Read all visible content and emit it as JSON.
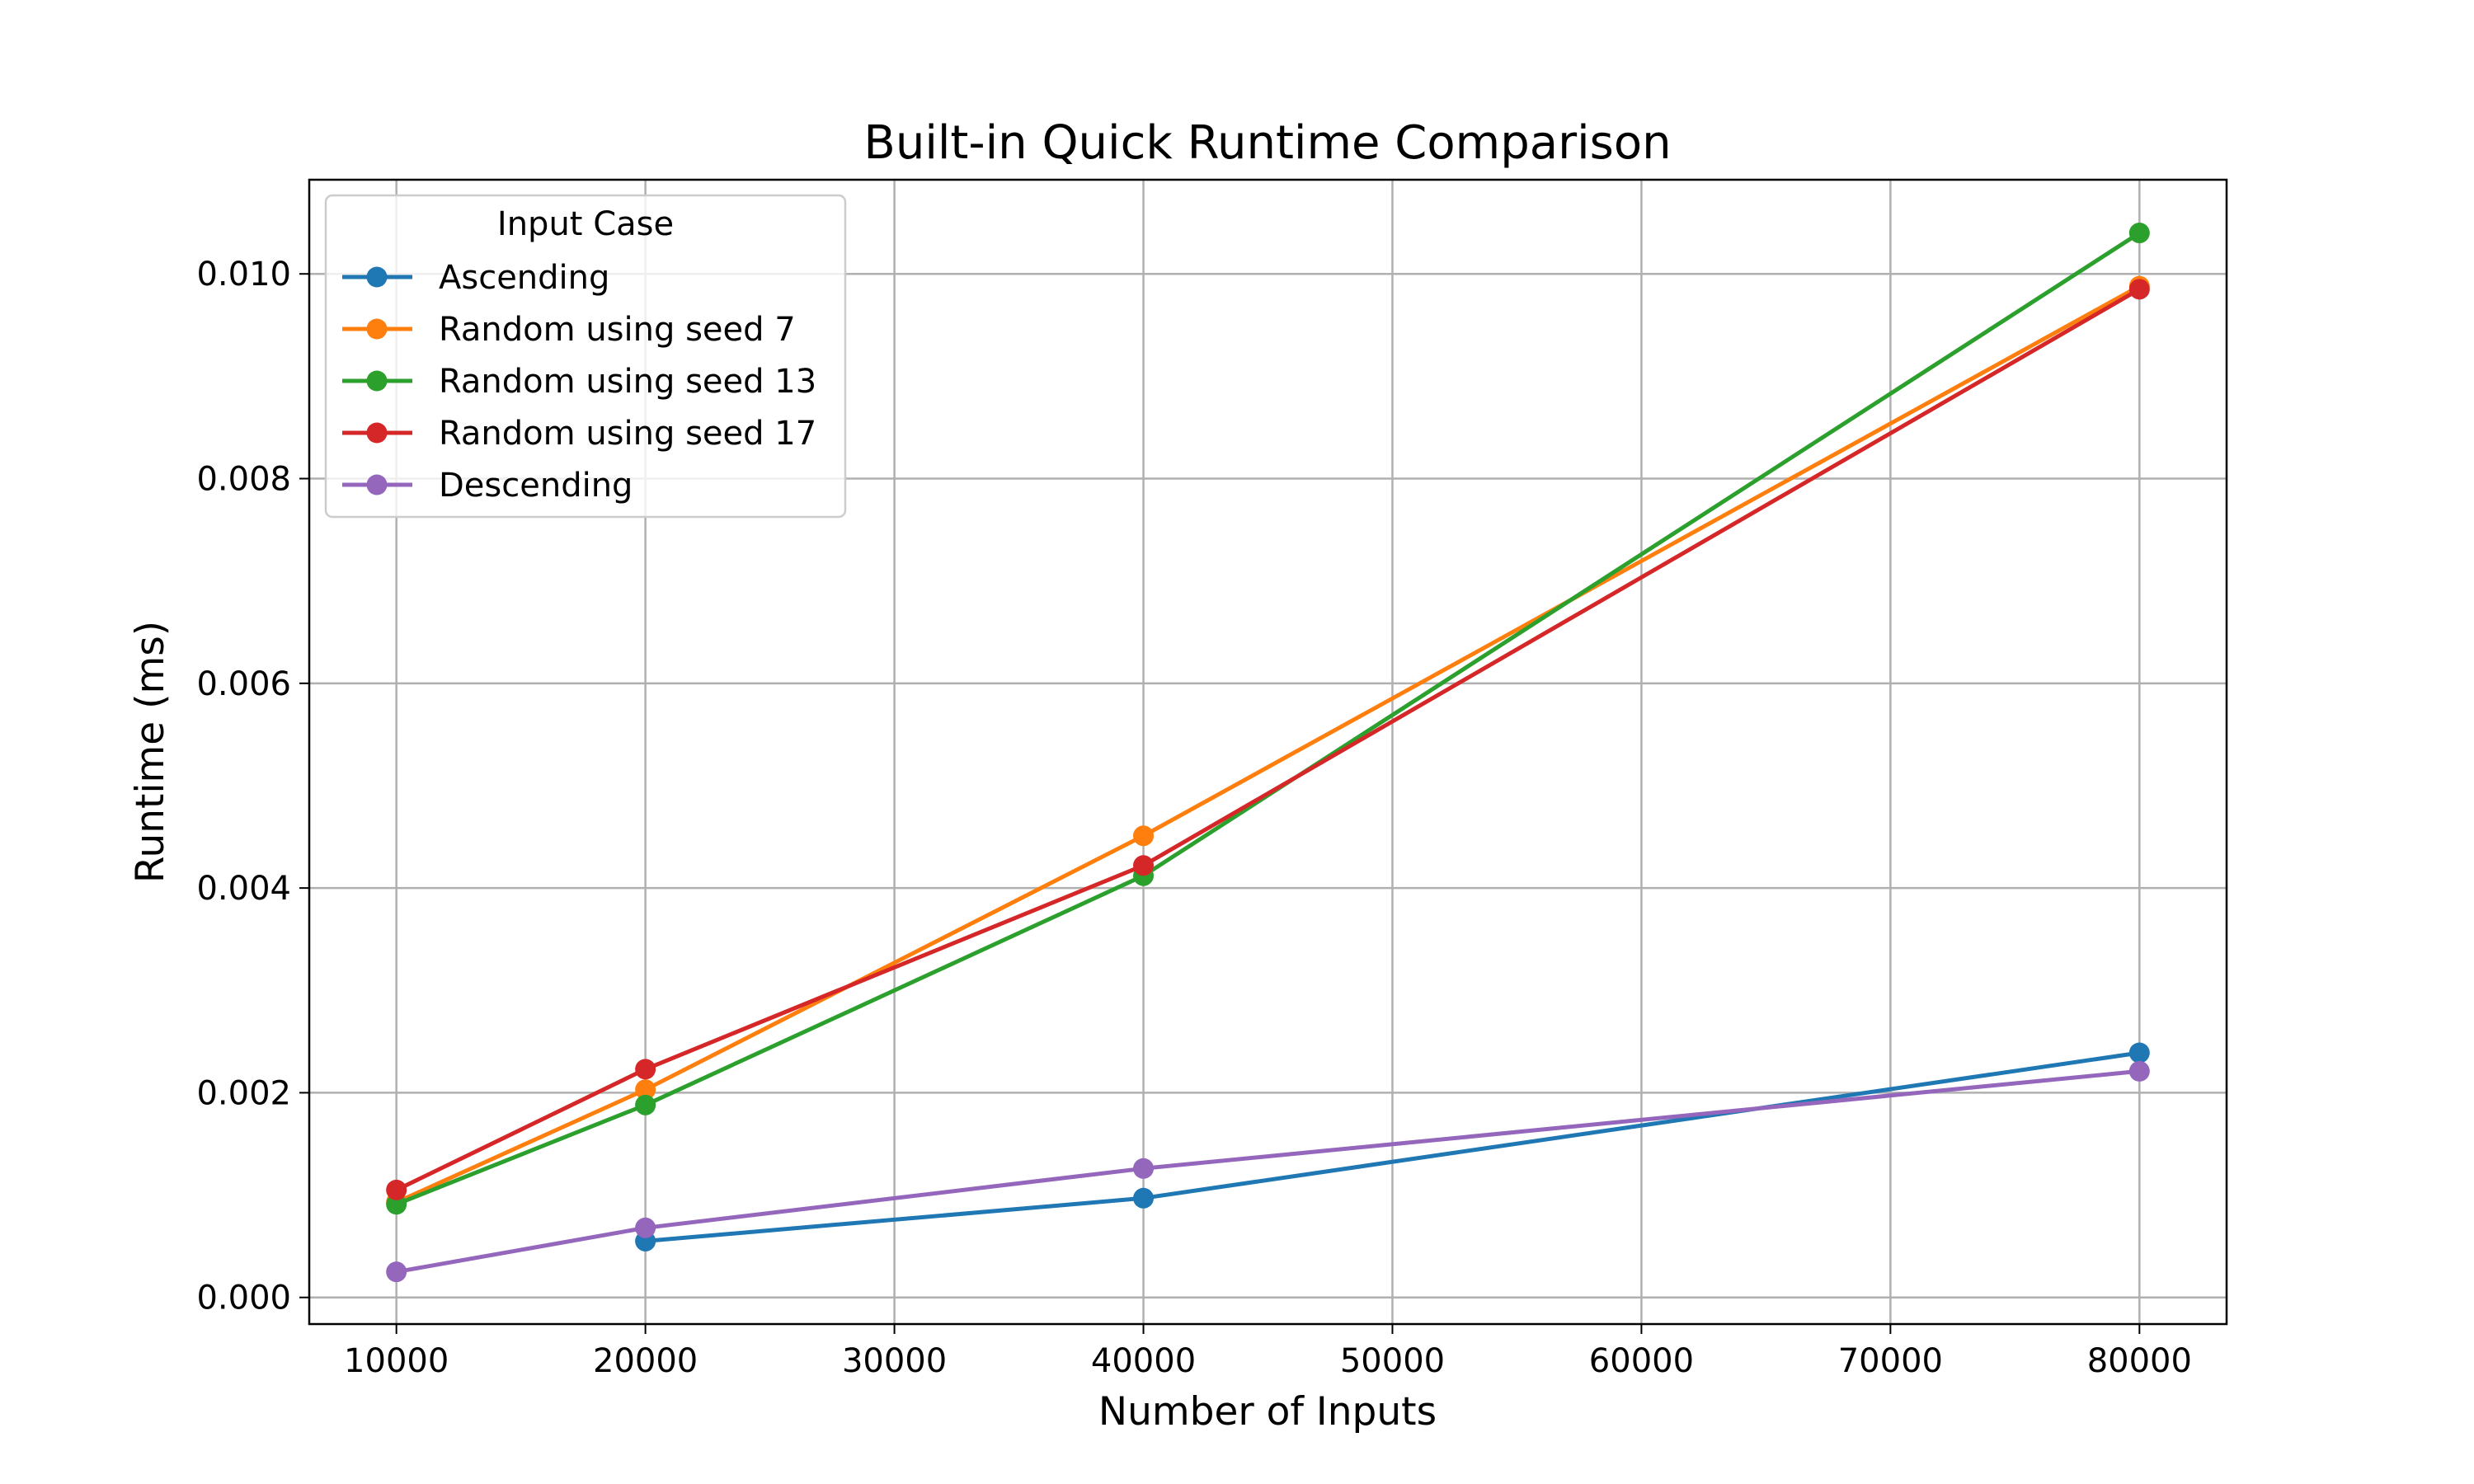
{
  "chart_data": {
    "type": "line",
    "title": "Built-in Quick Runtime Comparison",
    "xlabel": "Number of Inputs",
    "ylabel": "Runtime (ms)",
    "xlim": [
      6500,
      83500
    ],
    "ylim": [
      -0.00026,
      0.01092
    ],
    "xticks": [
      10000,
      20000,
      30000,
      40000,
      50000,
      60000,
      70000,
      80000
    ],
    "xtick_labels": [
      "10000",
      "20000",
      "30000",
      "40000",
      "50000",
      "60000",
      "70000",
      "80000"
    ],
    "yticks": [
      0.0,
      0.002,
      0.004,
      0.006,
      0.008,
      0.01
    ],
    "ytick_labels": [
      "0.000",
      "0.002",
      "0.004",
      "0.006",
      "0.008",
      "0.010"
    ],
    "grid": true,
    "legend": {
      "title": "Input Case",
      "placement": "upper-left"
    },
    "x": [
      10000,
      20000,
      40000,
      80000
    ],
    "series": [
      {
        "name": "Ascending",
        "color": "#1f77b4",
        "x": [
          20000,
          40000,
          80000
        ],
        "values": [
          0.00055,
          0.00097,
          0.00239
        ]
      },
      {
        "name": "Random using seed 7",
        "color": "#ff7f0e",
        "x": [
          10000,
          20000,
          40000,
          80000
        ],
        "values": [
          0.00093,
          0.00203,
          0.00451,
          0.00988
        ]
      },
      {
        "name": "Random using seed 13",
        "color": "#2ca02c",
        "x": [
          10000,
          20000,
          40000,
          80000
        ],
        "values": [
          0.00091,
          0.00188,
          0.00412,
          0.0104
        ]
      },
      {
        "name": "Random using seed 17",
        "color": "#d62728",
        "x": [
          10000,
          20000,
          40000,
          80000
        ],
        "values": [
          0.00105,
          0.00223,
          0.00422,
          0.00985
        ]
      },
      {
        "name": "Descending",
        "color": "#9467bd",
        "x": [
          10000,
          20000,
          40000,
          80000
        ],
        "values": [
          0.00025,
          0.00068,
          0.00126,
          0.00221
        ]
      }
    ]
  }
}
